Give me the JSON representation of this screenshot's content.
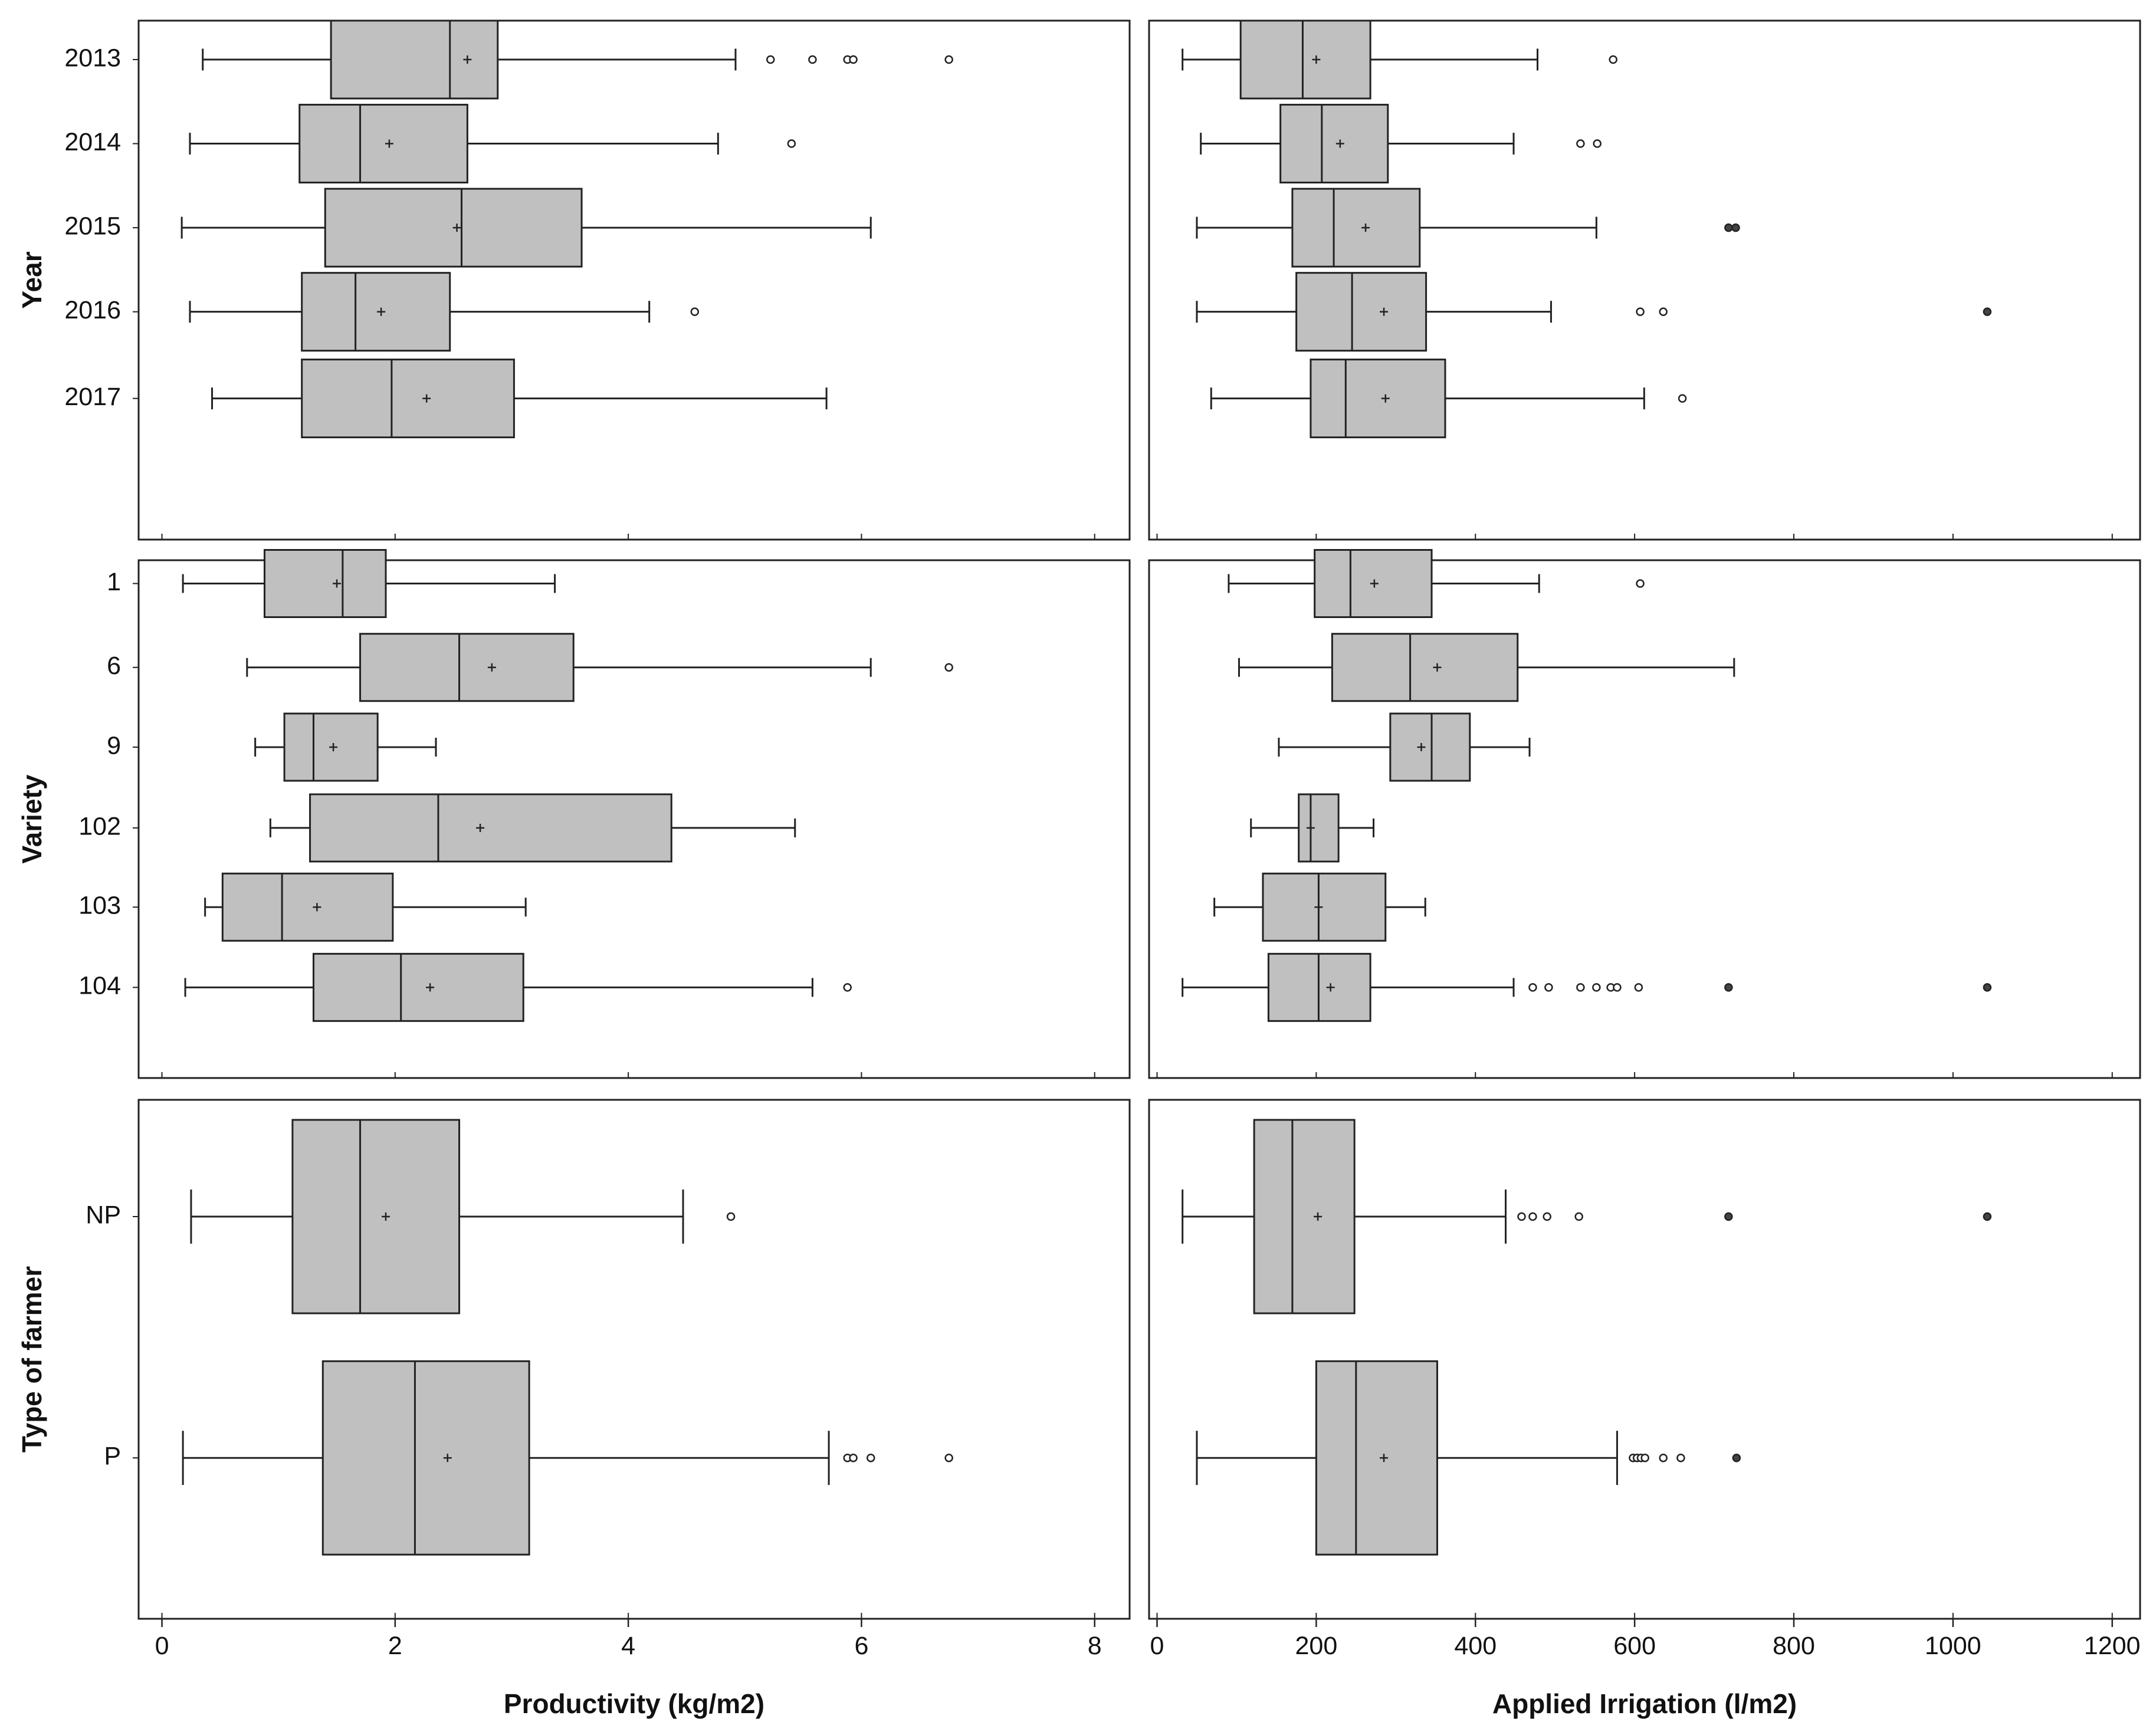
{
  "chart_data": {
    "type": "boxplot",
    "colors": {
      "box_fill": "#c0c0c0",
      "stroke": "#222222",
      "background": "#ffffff"
    },
    "x_axes": [
      {
        "title": "Productivity (kg/m2)",
        "range": [
          -0.2,
          8.3
        ],
        "ticks": [
          0,
          2,
          4,
          6,
          8
        ],
        "tick_labels": [
          "0",
          "2",
          "4",
          "6",
          "8"
        ]
      },
      {
        "title": "Applied Irrigation (l/m2)",
        "range": [
          -10,
          1235
        ],
        "ticks": [
          0,
          200,
          400,
          600,
          800,
          1000,
          1200
        ],
        "tick_labels": [
          "0",
          "200",
          "400",
          "600",
          "800",
          "1000",
          "1200"
        ]
      }
    ],
    "groups": [
      {
        "title": "Year",
        "categories": [
          "2013",
          "2014",
          "2015",
          "2016",
          "2017"
        ],
        "panels": [
          {
            "boxes": [
              {
                "min": 0.35,
                "q1": 1.45,
                "median": 2.47,
                "q3": 2.88,
                "max": 4.92,
                "mean": 2.62,
                "outliers": [
                  5.22,
                  5.58,
                  5.88,
                  5.93,
                  6.75
                ]
              },
              {
                "min": 0.24,
                "q1": 1.18,
                "median": 1.7,
                "q3": 2.62,
                "max": 4.77,
                "mean": 1.95,
                "outliers": [
                  5.4
                ]
              },
              {
                "min": 0.17,
                "q1": 1.4,
                "median": 2.57,
                "q3": 3.6,
                "max": 6.08,
                "mean": 2.53,
                "outliers": []
              },
              {
                "min": 0.24,
                "q1": 1.2,
                "median": 1.66,
                "q3": 2.47,
                "max": 4.18,
                "mean": 1.88,
                "outliers": [
                  4.57
                ]
              },
              {
                "min": 0.43,
                "q1": 1.2,
                "median": 1.97,
                "q3": 3.02,
                "max": 5.7,
                "mean": 2.27,
                "outliers": []
              }
            ]
          },
          {
            "boxes": [
              {
                "min": 32,
                "q1": 105,
                "median": 183,
                "q3": 268,
                "max": 478,
                "mean": 200,
                "outliers": [
                  573
                ]
              },
              {
                "min": 55,
                "q1": 155,
                "median": 207,
                "q3": 290,
                "max": 448,
                "mean": 230,
                "outliers": [
                  532,
                  553
                ]
              },
              {
                "min": 50,
                "q1": 170,
                "median": 222,
                "q3": 330,
                "max": 552,
                "mean": 262,
                "outliers": [
                  718,
                  727
                ]
              },
              {
                "min": 50,
                "q1": 175,
                "median": 245,
                "q3": 338,
                "max": 495,
                "mean": 285,
                "outliers": [
                  607,
                  636,
                  1043
                ]
              },
              {
                "min": 68,
                "q1": 193,
                "median": 237,
                "q3": 362,
                "max": 612,
                "mean": 287,
                "outliers": [
                  660
                ]
              }
            ]
          }
        ]
      },
      {
        "title": "Variety",
        "categories": [
          "1",
          "6",
          "9",
          "102",
          "103",
          "104"
        ],
        "panels": [
          {
            "boxes": [
              {
                "min": 0.18,
                "q1": 0.88,
                "median": 1.55,
                "q3": 1.92,
                "max": 3.37,
                "mean": 1.5,
                "outliers": []
              },
              {
                "min": 0.73,
                "q1": 1.7,
                "median": 2.55,
                "q3": 3.53,
                "max": 6.08,
                "mean": 2.83,
                "outliers": [
                  6.75
                ]
              },
              {
                "min": 0.8,
                "q1": 1.05,
                "median": 1.3,
                "q3": 1.85,
                "max": 2.35,
                "mean": 1.47,
                "outliers": []
              },
              {
                "min": 0.93,
                "q1": 1.27,
                "median": 2.37,
                "q3": 4.37,
                "max": 5.43,
                "mean": 2.73,
                "outliers": []
              },
              {
                "min": 0.37,
                "q1": 0.52,
                "median": 1.03,
                "q3": 1.98,
                "max": 3.12,
                "mean": 1.33,
                "outliers": []
              },
              {
                "min": 0.2,
                "q1": 1.3,
                "median": 2.05,
                "q3": 3.1,
                "max": 5.58,
                "mean": 2.3,
                "outliers": [
                  5.88
                ]
              }
            ]
          },
          {
            "boxes": [
              {
                "min": 90,
                "q1": 198,
                "median": 243,
                "q3": 345,
                "max": 480,
                "mean": 273,
                "outliers": [
                  607
                ]
              },
              {
                "min": 103,
                "q1": 220,
                "median": 318,
                "q3": 453,
                "max": 725,
                "mean": 352,
                "outliers": []
              },
              {
                "min": 153,
                "q1": 293,
                "median": 345,
                "q3": 393,
                "max": 468,
                "mean": 332,
                "outliers": []
              },
              {
                "min": 118,
                "q1": 178,
                "median": 193,
                "q3": 228,
                "max": 272,
                "mean": 193,
                "outliers": []
              },
              {
                "min": 72,
                "q1": 133,
                "median": 203,
                "q3": 287,
                "max": 337,
                "mean": 203,
                "outliers": []
              },
              {
                "min": 32,
                "q1": 140,
                "median": 203,
                "q3": 268,
                "max": 448,
                "mean": 218,
                "outliers": [
                  472,
                  492,
                  532,
                  552,
                  570,
                  578,
                  605,
                  718,
                  1043
                ]
              }
            ]
          }
        ]
      },
      {
        "title": "Type of farmer",
        "categories": [
          "NP",
          "P"
        ],
        "panels": [
          {
            "boxes": [
              {
                "min": 0.25,
                "q1": 1.12,
                "median": 1.7,
                "q3": 2.55,
                "max": 4.47,
                "mean": 1.92,
                "outliers": [
                  4.88
                ]
              },
              {
                "min": 0.18,
                "q1": 1.38,
                "median": 2.17,
                "q3": 3.15,
                "max": 5.72,
                "mean": 2.45,
                "outliers": [
                  5.88,
                  5.93,
                  6.08,
                  6.75
                ]
              }
            ]
          },
          {
            "boxes": [
              {
                "min": 32,
                "q1": 122,
                "median": 170,
                "q3": 248,
                "max": 438,
                "mean": 202,
                "outliers": [
                  458,
                  472,
                  490,
                  530,
                  718,
                  1043
                ]
              },
              {
                "min": 50,
                "q1": 200,
                "median": 250,
                "q3": 352,
                "max": 578,
                "mean": 285,
                "outliers": [
                  598,
                  603,
                  608,
                  613,
                  636,
                  658,
                  728
                ]
              }
            ]
          }
        ]
      }
    ]
  }
}
